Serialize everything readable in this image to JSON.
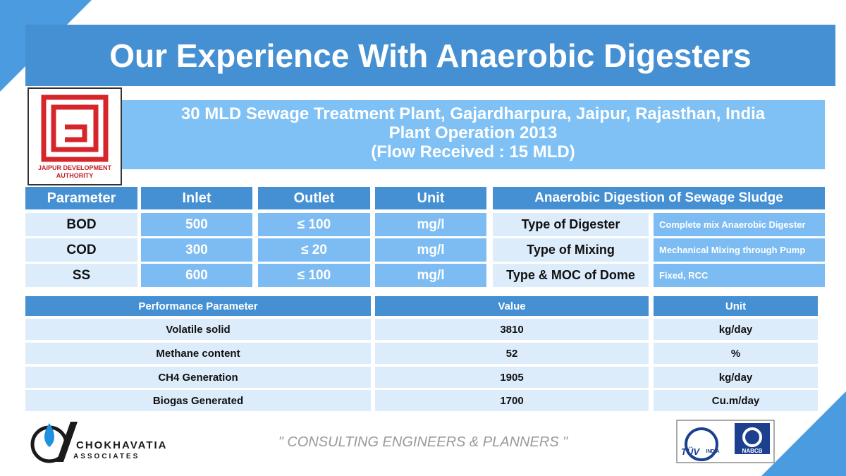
{
  "header": {
    "title": "Our Experience With Anaerobic Digesters"
  },
  "logo_left": {
    "text": "JAIPUR DEVELOPMENT AUTHORITY"
  },
  "project": {
    "lines": [
      "30 MLD Sewage Treatment Plant, Gajardharpura, Jaipur, Rajasthan, India",
      "Plant Operation 2013",
      "(Flow Received : 15 MLD)"
    ]
  },
  "quality_table": {
    "headers": [
      "Parameter",
      "Inlet",
      "Outlet",
      "Unit"
    ],
    "rows": [
      [
        "BOD",
        "500",
        "≤ 100",
        "mg/l"
      ],
      [
        "COD",
        "300",
        "≤ 20",
        "mg/l"
      ],
      [
        "SS",
        "600",
        "≤ 100",
        "mg/l"
      ]
    ]
  },
  "digestion_table": {
    "header": "Anaerobic Digestion of Sewage Sludge",
    "rows": [
      [
        "Type of Digester",
        "Complete mix Anaerobic Digester"
      ],
      [
        "Type of Mixing",
        "Mechanical Mixing through Pump"
      ],
      [
        "Type & MOC of Dome",
        "Fixed, RCC"
      ]
    ]
  },
  "performance_table": {
    "headers": [
      "Performance Parameter",
      "Value",
      "Unit"
    ],
    "rows": [
      [
        "Volatile solid",
        "3810",
        "kg/day"
      ],
      [
        "Methane content",
        "52",
        "%"
      ],
      [
        "CH4 Generation",
        "1905",
        "kg/day"
      ],
      [
        "Biogas Generated",
        "1700",
        "Cu.m/day"
      ]
    ]
  },
  "footer": {
    "tagline": "\" CONSULTING ENGINEERS & PLANNERS \"",
    "company": [
      "CHOKHAVATIA",
      "ASSOCIATES"
    ],
    "cert": [
      "TÜV",
      "INDIA",
      "NABCB"
    ]
  }
}
